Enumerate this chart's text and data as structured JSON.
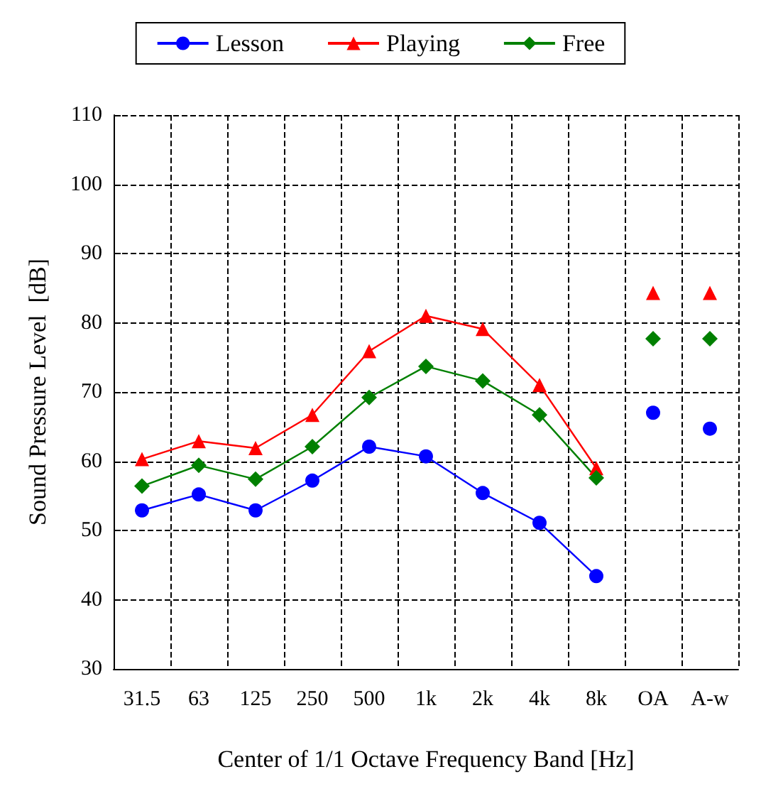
{
  "chart_data": {
    "type": "line",
    "xlabel": "Center of 1/1 Octave Frequency Band [Hz]",
    "ylabel": "Sound Pressure Level  [dB]",
    "categories": [
      "31.5",
      "63",
      "125",
      "250",
      "500",
      "1k",
      "2k",
      "4k",
      "8k",
      "OA",
      "A-w"
    ],
    "ylim": [
      30,
      110
    ],
    "yticks": [
      30,
      40,
      50,
      60,
      70,
      80,
      90,
      100,
      110
    ],
    "grid": true,
    "legend": "top",
    "line_style": "solid",
    "series": [
      {
        "name": "Lesson",
        "color": "#0000ff",
        "marker": "circle",
        "values": [
          52.9,
          55.2,
          52.9,
          57.2,
          62.1,
          60.7,
          55.4,
          51.1,
          43.4,
          null,
          null
        ]
      },
      {
        "name": "Playing",
        "color": "#ff0000",
        "marker": "triangle",
        "values": [
          60.3,
          62.9,
          61.9,
          66.7,
          75.9,
          81.0,
          79.1,
          71.0,
          59.0,
          null,
          null
        ]
      },
      {
        "name": "Free",
        "color": "#008000",
        "marker": "diamond",
        "values": [
          56.4,
          59.4,
          57.4,
          62.1,
          69.2,
          73.7,
          71.6,
          66.7,
          57.6,
          null,
          null
        ]
      },
      {
        "type": "scatter",
        "color": "#0000ff",
        "marker": "circle",
        "values": [
          null,
          null,
          null,
          null,
          null,
          null,
          null,
          null,
          null,
          67.0,
          64.7
        ]
      },
      {
        "type": "scatter",
        "color": "#ff0000",
        "marker": "triangle",
        "values": [
          null,
          null,
          null,
          null,
          null,
          null,
          null,
          null,
          null,
          84.3,
          84.3
        ]
      },
      {
        "type": "scatter",
        "color": "#008000",
        "marker": "diamond",
        "values": [
          null,
          null,
          null,
          null,
          null,
          null,
          null,
          null,
          null,
          77.7,
          77.7
        ]
      }
    ]
  }
}
